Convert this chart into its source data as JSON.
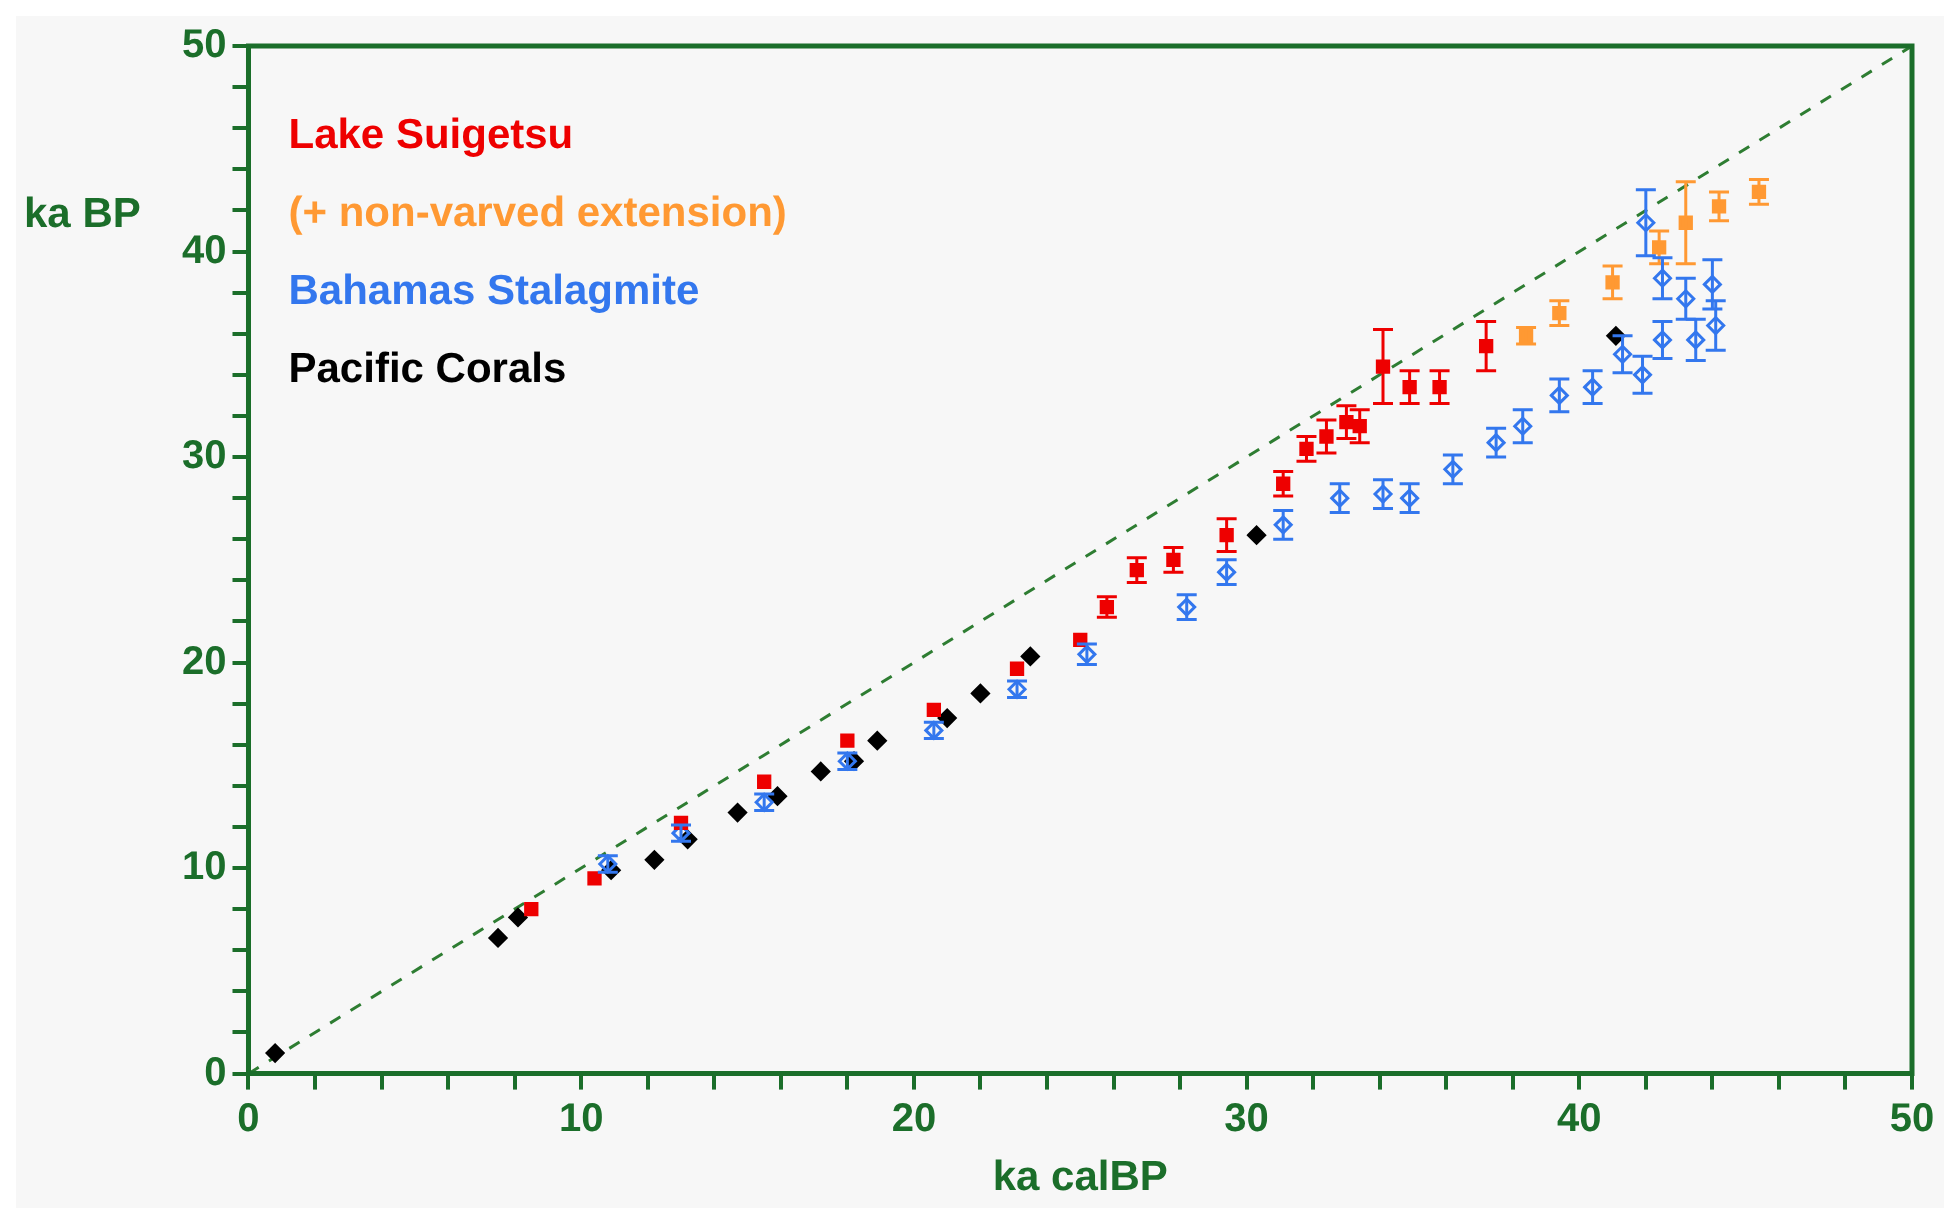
{
  "chart_data": {
    "type": "scatter",
    "xlabel": "ka calBP",
    "ylabel": "ka BP",
    "xlim": [
      0,
      50
    ],
    "ylim": [
      0,
      50
    ],
    "xticks": [
      0,
      {
        "value": 2,
        "label": null
      },
      {
        "value": 4,
        "label": null
      },
      {
        "value": 6,
        "label": null
      },
      {
        "value": 8,
        "label": null
      },
      10,
      {
        "value": 12,
        "label": null
      },
      {
        "value": 14,
        "label": null
      },
      {
        "value": 16,
        "label": null
      },
      {
        "value": 18,
        "label": null
      },
      20,
      {
        "value": 22,
        "label": null
      },
      {
        "value": 24,
        "label": null
      },
      {
        "value": 26,
        "label": null
      },
      {
        "value": 28,
        "label": null
      },
      30,
      {
        "value": 32,
        "label": null
      },
      {
        "value": 34,
        "label": null
      },
      {
        "value": 36,
        "label": null
      },
      {
        "value": 38,
        "label": null
      },
      40,
      {
        "value": 42,
        "label": null
      },
      {
        "value": 44,
        "label": null
      },
      {
        "value": 46,
        "label": null
      },
      {
        "value": 48,
        "label": null
      },
      50
    ],
    "yticks": [
      0,
      {
        "value": 2,
        "label": null
      },
      {
        "value": 4,
        "label": null
      },
      {
        "value": 6,
        "label": null
      },
      {
        "value": 8,
        "label": null
      },
      10,
      {
        "value": 12,
        "label": null
      },
      {
        "value": 14,
        "label": null
      },
      {
        "value": 16,
        "label": null
      },
      {
        "value": 18,
        "label": null
      },
      20,
      {
        "value": 22,
        "label": null
      },
      {
        "value": 24,
        "label": null
      },
      {
        "value": 26,
        "label": null
      },
      {
        "value": 28,
        "label": null
      },
      30,
      {
        "value": 32,
        "label": null
      },
      {
        "value": 34,
        "label": null
      },
      {
        "value": 36,
        "label": null
      },
      {
        "value": 38,
        "label": null
      },
      40,
      {
        "value": 42,
        "label": null
      },
      {
        "value": 44,
        "label": null
      },
      {
        "value": 46,
        "label": null
      },
      {
        "value": 48,
        "label": null
      },
      50
    ],
    "grid": false,
    "legend": "top left",
    "series": [
      {
        "type": "line",
        "color": "#2e7d32",
        "line_style": "dashed",
        "marker": "none",
        "x": [
          0,
          50
        ],
        "values": [
          0,
          50
        ]
      },
      {
        "name": "Lake Suigetsu",
        "color": "#ee0000",
        "marker": "square",
        "x": [
          8.5,
          10.4,
          13.0,
          15.5,
          18.0,
          20.6,
          23.1,
          25.0,
          25.8,
          26.7,
          27.8,
          29.4,
          31.1,
          31.8,
          32.4,
          33.0,
          33.4,
          34.1,
          34.9,
          35.8,
          37.2
        ],
        "values": [
          8.0,
          9.5,
          12.2,
          14.2,
          16.2,
          17.7,
          19.7,
          21.1,
          22.7,
          24.5,
          25.0,
          26.2,
          28.7,
          30.4,
          31.0,
          31.7,
          31.5,
          34.4,
          33.4,
          33.4,
          35.4
        ],
        "errors": [
          null,
          null,
          null,
          null,
          null,
          null,
          null,
          null,
          0.5,
          0.6,
          0.6,
          0.8,
          0.6,
          0.6,
          0.8,
          0.8,
          0.8,
          1.8,
          0.8,
          0.8,
          1.2
        ]
      },
      {
        "name": "(+ non-varved extension)",
        "color": "#ff9933",
        "marker": "square",
        "x": [
          38.4,
          39.4,
          41.0,
          42.4,
          43.2,
          44.2,
          45.4
        ],
        "values": [
          35.9,
          37.0,
          38.5,
          40.2,
          41.4,
          42.2,
          42.9
        ],
        "errors": [
          0.4,
          0.6,
          0.8,
          0.8,
          2.0,
          0.7,
          0.6
        ]
      },
      {
        "name": "Bahamas Stalagmite",
        "color": "#3377ee",
        "marker": "diamond",
        "x": [
          10.8,
          13.0,
          15.5,
          18.0,
          20.6,
          23.1,
          25.2,
          28.2,
          29.4,
          31.1,
          32.8,
          34.1,
          34.9,
          36.2,
          37.5,
          38.3,
          39.4,
          40.4,
          41.3,
          41.9,
          42.0,
          42.5,
          42.5,
          43.2,
          43.5,
          44.0,
          44.1
        ],
        "values": [
          10.2,
          11.7,
          13.2,
          15.2,
          16.7,
          18.7,
          20.4,
          22.7,
          24.4,
          26.7,
          28.0,
          28.2,
          28.0,
          29.4,
          30.7,
          31.5,
          33.0,
          33.4,
          35.0,
          34.0,
          41.4,
          35.7,
          38.7,
          37.7,
          35.7,
          38.4,
          36.4
        ],
        "errors": [
          0.4,
          0.4,
          0.4,
          0.4,
          0.4,
          0.4,
          0.5,
          0.6,
          0.6,
          0.7,
          0.7,
          0.7,
          0.7,
          0.7,
          0.7,
          0.8,
          0.8,
          0.8,
          0.9,
          0.9,
          1.6,
          0.9,
          1.0,
          1.0,
          1.0,
          1.2,
          1.2
        ]
      },
      {
        "name": "Pacific Corals",
        "color": "#000000",
        "marker": "diamond",
        "x": [
          0.8,
          7.5,
          8.1,
          10.9,
          12.2,
          13.2,
          14.7,
          15.9,
          17.2,
          18.2,
          18.9,
          21.0,
          22.0,
          23.5,
          30.3,
          41.1
        ],
        "values": [
          1.0,
          6.6,
          7.6,
          9.9,
          10.4,
          11.4,
          12.7,
          13.5,
          14.7,
          15.2,
          16.2,
          17.3,
          18.5,
          20.3,
          26.2,
          35.9
        ]
      }
    ]
  }
}
